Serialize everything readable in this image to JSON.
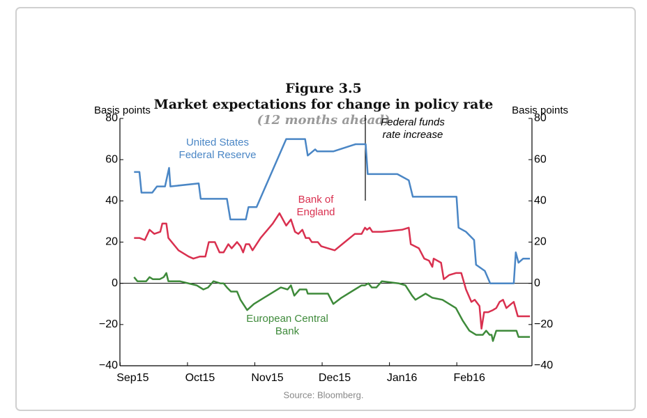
{
  "chart_data": {
    "type": "line",
    "figure_label": "Figure 3.5",
    "title": "Market expectations for change in policy rate",
    "subtitle": "(12 months ahead)",
    "ylabel": "Basis points",
    "y2label": "Basis points",
    "source": "Source: Bloomberg.",
    "xlim": [
      -0.19,
      5.93
    ],
    "xticks": [
      {
        "value": 0,
        "label": "Sep15"
      },
      {
        "value": 1,
        "label": "Oct15"
      },
      {
        "value": 2,
        "label": "Nov15"
      },
      {
        "value": 3,
        "label": "Dec15"
      },
      {
        "value": 4,
        "label": "Jan16"
      },
      {
        "value": 5,
        "label": "Feb16"
      }
    ],
    "ylim": [
      -40,
      80
    ],
    "yticks": [
      {
        "value": -40,
        "label": "−40"
      },
      {
        "value": -20,
        "label": "−20"
      },
      0,
      20,
      40,
      60,
      80
    ],
    "y2lim": [
      -40,
      80
    ],
    "y2ticks": [
      {
        "value": -40,
        "label": "−40"
      },
      {
        "value": -20,
        "label": "−20"
      },
      0,
      20,
      40,
      60,
      80
    ],
    "grid": false,
    "annotations": [
      {
        "lines": [
          "Federal funds",
          "rate increase"
        ]
      }
    ],
    "series": [
      {
        "label": [
          "United States",
          "Federal Reserve"
        ],
        "color": "#4a86c5",
        "x": [
          0.02,
          0.1,
          0.13,
          0.29,
          0.36,
          0.48,
          0.5,
          0.54,
          0.56,
          0.98,
          1.01,
          1.4,
          1.45,
          1.68,
          1.72,
          1.84,
          2.28,
          2.56,
          2.6,
          2.71,
          2.74,
          2.98,
          3.31,
          3.46,
          3.49,
          3.93,
          4.1,
          4.16,
          4.81,
          4.84,
          4.95,
          5.07,
          5.1,
          5.23,
          5.31,
          5.66,
          5.69,
          5.73,
          5.8,
          5.9
        ],
        "values": [
          54,
          54,
          44,
          44,
          47,
          47,
          50,
          56,
          47,
          48.5,
          41,
          41,
          31,
          31,
          37,
          37,
          70,
          70,
          62,
          65,
          64,
          64,
          67.5,
          67.5,
          53,
          53,
          50,
          42,
          42,
          27,
          25,
          21,
          9,
          6,
          0,
          0,
          15,
          10,
          12,
          12
        ]
      },
      {
        "label": [
          "Bank of",
          "England"
        ],
        "color": "#d9304f",
        "x": [
          0.02,
          0.1,
          0.18,
          0.25,
          0.32,
          0.41,
          0.44,
          0.5,
          0.53,
          0.68,
          0.83,
          0.9,
          1.0,
          1.08,
          1.13,
          1.22,
          1.29,
          1.35,
          1.42,
          1.47,
          1.55,
          1.6,
          1.64,
          1.68,
          1.73,
          1.78,
          1.9,
          2.08,
          2.18,
          2.28,
          2.35,
          2.41,
          2.46,
          2.52,
          2.57,
          2.62,
          2.66,
          2.75,
          2.8,
          2.9,
          3.0,
          3.15,
          3.3,
          3.4,
          3.45,
          3.48,
          3.52,
          3.56,
          3.7,
          4.0,
          4.1,
          4.13,
          4.25,
          4.33,
          4.4,
          4.45,
          4.47,
          4.58,
          4.62,
          4.7,
          4.8,
          4.88,
          4.95,
          5.03,
          5.08,
          5.15,
          5.18,
          5.22,
          5.28,
          5.35,
          5.4,
          5.45,
          5.5,
          5.55,
          5.62,
          5.66,
          5.72,
          5.9
        ],
        "values": [
          22,
          22,
          21,
          26,
          24,
          25,
          29,
          29,
          22,
          16,
          13,
          12,
          13,
          13,
          20,
          20,
          15,
          15,
          19,
          17,
          20,
          18,
          15,
          19,
          19,
          16,
          22,
          29,
          34,
          28,
          31,
          25,
          24,
          26,
          22,
          22,
          20,
          20,
          18,
          17,
          16,
          20,
          24,
          24,
          27,
          26,
          27,
          25,
          25,
          26,
          27,
          19,
          17,
          12,
          11,
          8,
          12,
          10,
          2,
          4,
          5,
          5,
          -3,
          -9,
          -8,
          -11,
          -22,
          -14,
          -14,
          -13,
          -12,
          -9,
          -8,
          -12,
          -10,
          -9,
          -16,
          -16
        ]
      },
      {
        "label": [
          "European Central",
          "Bank"
        ],
        "color": "#3e8a3a",
        "x": [
          0.02,
          0.07,
          0.2,
          0.25,
          0.3,
          0.4,
          0.46,
          0.5,
          0.53,
          0.7,
          0.95,
          1.05,
          1.12,
          1.2,
          1.3,
          1.35,
          1.4,
          1.46,
          1.55,
          1.6,
          1.7,
          1.8,
          2.0,
          2.2,
          2.3,
          2.35,
          2.4,
          2.48,
          2.58,
          2.6,
          2.72,
          2.9,
          2.98,
          3.1,
          3.3,
          3.4,
          3.45,
          3.5,
          3.55,
          3.62,
          3.7,
          3.95,
          4.05,
          4.15,
          4.2,
          4.3,
          4.35,
          4.45,
          4.6,
          4.8,
          4.9,
          5.0,
          5.1,
          5.2,
          5.25,
          5.3,
          5.33,
          5.35,
          5.4,
          5.45,
          5.7,
          5.73,
          5.9
        ],
        "values": [
          3,
          1,
          1,
          3,
          2,
          2,
          3,
          5,
          1,
          1,
          -1,
          -3,
          -2,
          1,
          0,
          0,
          -2,
          -4,
          -4,
          -8,
          -13,
          -10,
          -6,
          -2,
          -3,
          -1,
          -6,
          -3,
          -3,
          -5,
          -5,
          -5,
          -10,
          -7,
          -3,
          -1,
          -1,
          0,
          -2,
          -2,
          1,
          0,
          -1,
          -6,
          -8,
          -6,
          -5,
          -7,
          -8,
          -12,
          -18,
          -23,
          -25,
          -25,
          -23,
          -25,
          -25,
          -28,
          -23,
          -23,
          -23,
          -26,
          -26
        ]
      }
    ]
  }
}
